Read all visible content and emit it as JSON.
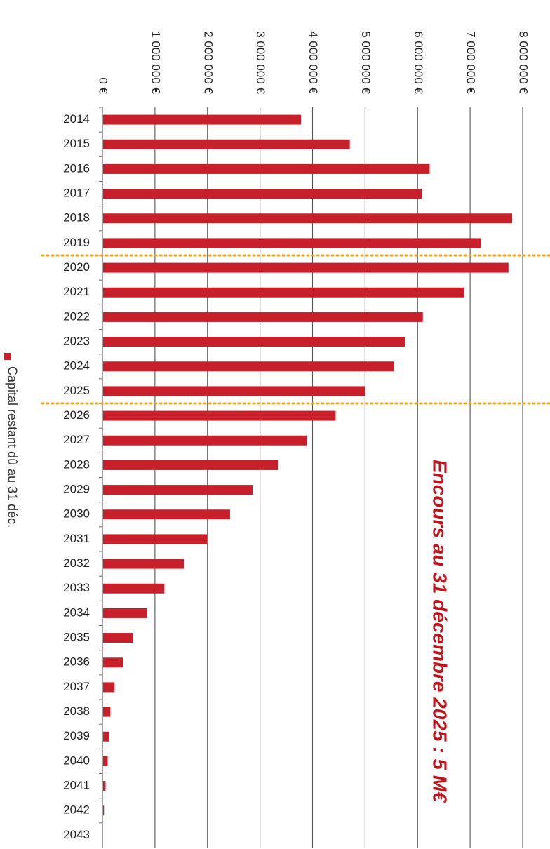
{
  "chart_data": {
    "type": "bar",
    "orientation": "horizontal",
    "title": "",
    "xlabel": "",
    "ylabel": "",
    "categories": [
      "2014",
      "2015",
      "2016",
      "2017",
      "2018",
      "2019",
      "2020",
      "2021",
      "2022",
      "2023",
      "2024",
      "2025",
      "2026",
      "2027",
      "2028",
      "2029",
      "2030",
      "2031",
      "2032",
      "2033",
      "2034",
      "2035",
      "2036",
      "2037",
      "2038",
      "2039",
      "2040",
      "2041",
      "2042",
      "2043"
    ],
    "series": [
      {
        "name": "Capital restant dû au 31 déc.",
        "color": "#c8202a",
        "values": [
          3780000,
          4710000,
          6230000,
          6080000,
          7800000,
          7200000,
          7730000,
          6890000,
          6100000,
          5760000,
          5550000,
          5000000,
          4440000,
          3890000,
          3340000,
          2860000,
          2430000,
          1990000,
          1550000,
          1180000,
          850000,
          580000,
          390000,
          230000,
          150000,
          130000,
          100000,
          60000,
          30000,
          0
        ]
      }
    ],
    "value_axis": {
      "range": [
        0,
        8000000
      ],
      "ticks": [
        0,
        1000000,
        2000000,
        3000000,
        4000000,
        5000000,
        6000000,
        7000000,
        8000000
      ],
      "tick_labels": [
        "0 €",
        "1 000 000 €",
        "2 000 000 €",
        "3 000 000 €",
        "4 000 000 €",
        "5 000 000 €",
        "6 000 000 €",
        "7 000 000 €",
        "8 000 000 €"
      ]
    },
    "grid": true,
    "legend_position": "bottom",
    "period_markers": {
      "after_category": [
        "2019",
        "2025"
      ],
      "color": "#f2a31b",
      "style": "dotted"
    },
    "annotations": [
      {
        "text": "Encours au 31 décembre 2025 : 5 M€",
        "color": "#c0141c"
      }
    ]
  }
}
